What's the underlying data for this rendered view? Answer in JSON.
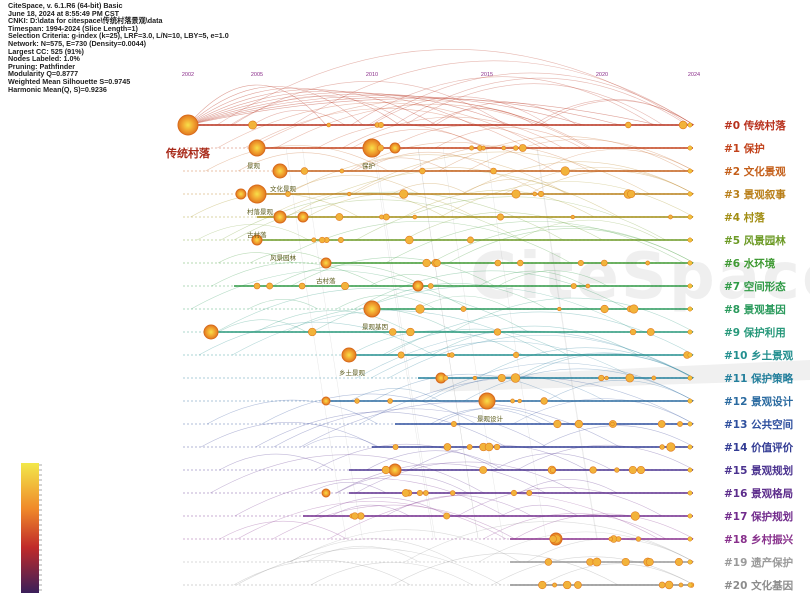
{
  "info": [
    "CiteSpace, v. 6.1.R6 (64-bit) Basic",
    "June 18, 2024 at 8:55:49 PM CST",
    "CNKI: D:\\data for citespace\\传统村落景观\\data",
    "Timespan: 1994-2024 (Slice Length=1)",
    "Selection Criteria: g-index (k=25), LRF=3.0, L/N=10, LBY=5, e=1.0",
    "Network: N=575, E=730 (Density=0.0044)",
    "Largest CC: 525 (91%)",
    "Nodes Labeled: 1.0%",
    "Pruning: Pathfinder",
    "Modularity Q=0.8777",
    "Weighted Mean Silhouette S=0.9745",
    "Harmonic Mean(Q, S)=0.9236"
  ],
  "watermark": "CiteSpace",
  "chart_data": {
    "type": "timeline",
    "years": [
      "2002",
      "2005",
      "2010",
      "2015",
      "2020",
      "2024"
    ],
    "clusters": [
      {
        "id": "#0",
        "label": "传统村落",
        "color": "#b8311d"
      },
      {
        "id": "#1",
        "label": "保护",
        "color": "#c2421b"
      },
      {
        "id": "#2",
        "label": "文化景观",
        "color": "#c45f1a"
      },
      {
        "id": "#3",
        "label": "景观叙事",
        "color": "#b97f1a"
      },
      {
        "id": "#4",
        "label": "村落",
        "color": "#a28e14"
      },
      {
        "id": "#5",
        "label": "风景园林",
        "color": "#6c9a25"
      },
      {
        "id": "#6",
        "label": "水环境",
        "color": "#3f9a33"
      },
      {
        "id": "#7",
        "label": "空间形态",
        "color": "#2f9a45"
      },
      {
        "id": "#8",
        "label": "景观基因",
        "color": "#2a9a5c"
      },
      {
        "id": "#9",
        "label": "保护利用",
        "color": "#27987a"
      },
      {
        "id": "#10",
        "label": "乡土景观",
        "color": "#238f8f"
      },
      {
        "id": "#11",
        "label": "保护策略",
        "color": "#237f9c"
      },
      {
        "id": "#12",
        "label": "景观设计",
        "color": "#2a6aa0"
      },
      {
        "id": "#13",
        "label": "公共空间",
        "color": "#2e4f9e"
      },
      {
        "id": "#14",
        "label": "价值评价",
        "color": "#333c94"
      },
      {
        "id": "#15",
        "label": "景观规划",
        "color": "#4a328f"
      },
      {
        "id": "#16",
        "label": "景观格局",
        "color": "#5d2d8c"
      },
      {
        "id": "#17",
        "label": "保护规划",
        "color": "#712b8c"
      },
      {
        "id": "#18",
        "label": "乡村振兴",
        "color": "#88308c"
      },
      {
        "id": "#19",
        "label": "遗产保护",
        "color": "#9a9a9a"
      },
      {
        "id": "#20",
        "label": "文化基因",
        "color": "#8c8c8c"
      }
    ],
    "keywords": [
      {
        "text": "传统村落",
        "cluster": 0,
        "year": 2002
      },
      {
        "text": "景观",
        "cluster": 1,
        "year": 2005
      },
      {
        "text": "保护",
        "cluster": 1,
        "year": 2010
      },
      {
        "text": "文化景观",
        "cluster": 2,
        "year": 2006
      },
      {
        "text": "村落景观",
        "cluster": 3,
        "year": 2005
      },
      {
        "text": "古村落",
        "cluster": 4,
        "year": 2005
      },
      {
        "text": "风景园林",
        "cluster": 5,
        "year": 2006
      },
      {
        "text": "古村落",
        "cluster": 6,
        "year": 2008
      },
      {
        "text": "景观基因",
        "cluster": 8,
        "year": 2010
      },
      {
        "text": "乡土景观",
        "cluster": 10,
        "year": 2009
      },
      {
        "text": "景观设计",
        "cluster": 12,
        "year": 2015
      }
    ]
  }
}
